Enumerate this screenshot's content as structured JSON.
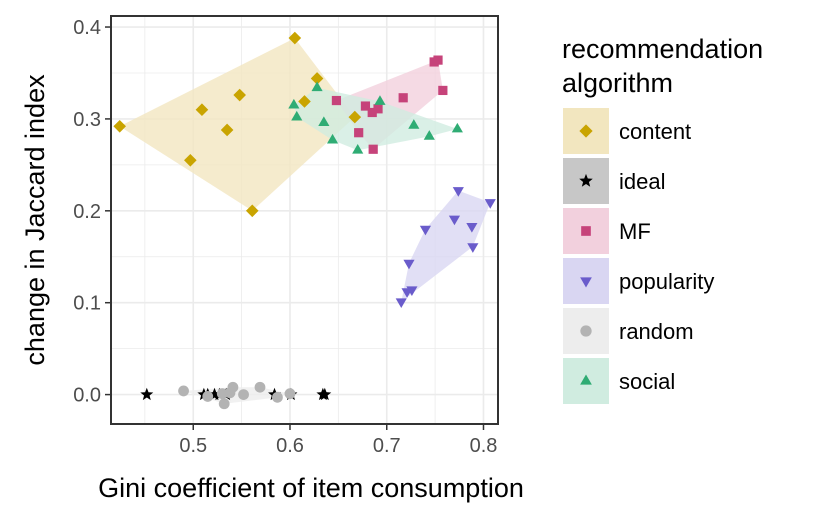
{
  "chart_data": {
    "type": "scatter",
    "xlabel": "Gini coefficient of item consumption",
    "ylabel": "change in Jaccard index",
    "xlim": [
      0.415,
      0.815
    ],
    "ylim": [
      -0.032,
      0.412
    ],
    "x_ticks": [
      0.5,
      0.6,
      0.7,
      0.8
    ],
    "x_tick_labels": [
      "0.5",
      "0.6",
      "0.7",
      "0.8"
    ],
    "y_ticks": [
      0.0,
      0.1,
      0.2,
      0.3,
      0.4
    ],
    "y_tick_labels": [
      "0.0",
      "0.1",
      "0.2",
      "0.3",
      "0.4"
    ],
    "grid": true,
    "hulls": true,
    "legend_title": [
      "recommendation",
      "algorithm"
    ],
    "legend_position": "right",
    "series": [
      {
        "name": "content",
        "color": "#c9a400",
        "fill": "#f2e6bf",
        "marker": "diamond",
        "points": [
          [
            0.605,
            0.388
          ],
          [
            0.628,
            0.344
          ],
          [
            0.548,
            0.326
          ],
          [
            0.509,
            0.31
          ],
          [
            0.615,
            0.319
          ],
          [
            0.424,
            0.292
          ],
          [
            0.535,
            0.288
          ],
          [
            0.497,
            0.255
          ],
          [
            0.667,
            0.302
          ],
          [
            0.561,
            0.2
          ]
        ]
      },
      {
        "name": "ideal",
        "color": "#000000",
        "fill": "#c7c7c7",
        "marker": "star",
        "points": [
          [
            0.452,
            0.0
          ],
          [
            0.511,
            0.0
          ],
          [
            0.515,
            0.0
          ],
          [
            0.522,
            0.0
          ],
          [
            0.527,
            0.0
          ],
          [
            0.534,
            0.0
          ],
          [
            0.584,
            0.0
          ],
          [
            0.601,
            0.0
          ],
          [
            0.634,
            0.0
          ],
          [
            0.636,
            0.0
          ]
        ]
      },
      {
        "name": "MF",
        "color": "#c6437a",
        "fill": "#f2d0dd",
        "marker": "square",
        "points": [
          [
            0.753,
            0.364
          ],
          [
            0.749,
            0.362
          ],
          [
            0.758,
            0.331
          ],
          [
            0.717,
            0.323
          ],
          [
            0.648,
            0.32
          ],
          [
            0.678,
            0.314
          ],
          [
            0.691,
            0.311
          ],
          [
            0.685,
            0.307
          ],
          [
            0.671,
            0.285
          ],
          [
            0.686,
            0.267
          ]
        ]
      },
      {
        "name": "popularity",
        "color": "#6a5ccb",
        "fill": "#d9d6f2",
        "marker": "triangle-down",
        "points": [
          [
            0.774,
            0.222
          ],
          [
            0.807,
            0.209
          ],
          [
            0.77,
            0.191
          ],
          [
            0.788,
            0.183
          ],
          [
            0.74,
            0.18
          ],
          [
            0.789,
            0.161
          ],
          [
            0.723,
            0.143
          ],
          [
            0.726,
            0.114
          ],
          [
            0.721,
            0.112
          ],
          [
            0.715,
            0.101
          ]
        ]
      },
      {
        "name": "random",
        "color": "#b3b3b3",
        "fill": "#ededed",
        "marker": "circle",
        "points": [
          [
            0.49,
            0.004
          ],
          [
            0.541,
            0.008
          ],
          [
            0.569,
            0.008
          ],
          [
            0.538,
            0.002
          ],
          [
            0.53,
            0.001
          ],
          [
            0.552,
            0.0
          ],
          [
            0.587,
            -0.003
          ],
          [
            0.532,
            -0.01
          ],
          [
            0.515,
            -0.002
          ],
          [
            0.6,
            0.001
          ]
        ]
      },
      {
        "name": "social",
        "color": "#2fac74",
        "fill": "#d0ece0",
        "marker": "triangle-up",
        "points": [
          [
            0.628,
            0.334
          ],
          [
            0.604,
            0.315
          ],
          [
            0.693,
            0.319
          ],
          [
            0.607,
            0.302
          ],
          [
            0.635,
            0.296
          ],
          [
            0.728,
            0.293
          ],
          [
            0.773,
            0.289
          ],
          [
            0.744,
            0.281
          ],
          [
            0.644,
            0.277
          ],
          [
            0.67,
            0.266
          ]
        ]
      }
    ]
  }
}
